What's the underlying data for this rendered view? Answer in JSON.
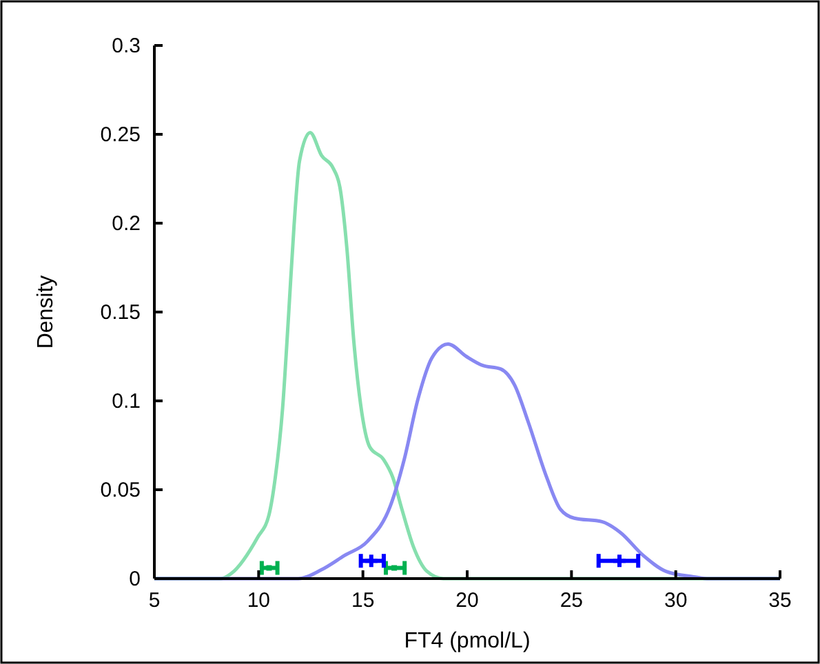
{
  "chart_data": {
    "type": "line",
    "xlabel": "FT4 (pmol/L)",
    "ylabel": "Density",
    "xlim": [
      5,
      35
    ],
    "ylim": [
      0,
      0.3
    ],
    "xticks": [
      5,
      10,
      15,
      20,
      25,
      30,
      35
    ],
    "yticks": [
      0,
      0.05,
      0.1,
      0.15,
      0.2,
      0.25,
      0.3
    ],
    "grid": false,
    "series": [
      {
        "color": "#86dfae",
        "x": [
          5,
          8.2,
          8.7,
          9.94,
          10.5,
          10.8,
          11.15,
          11.43,
          11.7,
          11.96,
          12.47,
          13.02,
          13.57,
          13.9,
          14.23,
          14.56,
          14.89,
          15.33,
          15.99,
          16.43,
          16.87,
          17.42,
          18.08,
          18.86,
          35
        ],
        "values": [
          0,
          0,
          0.003,
          0.023,
          0.036,
          0.057,
          0.096,
          0.147,
          0.199,
          0.235,
          0.251,
          0.238,
          0.231,
          0.22,
          0.186,
          0.134,
          0.098,
          0.074,
          0.067,
          0.057,
          0.039,
          0.018,
          0.004,
          0,
          0
        ]
      },
      {
        "color": "#8888f2",
        "x": [
          5,
          11.9,
          13.02,
          14.12,
          15.22,
          16.32,
          16.98,
          17.64,
          18.3,
          19.08,
          19.96,
          20.73,
          21.6,
          22.27,
          22.93,
          23.81,
          24.47,
          25.13,
          26.46,
          27.34,
          28.44,
          29.54,
          30.86,
          31.5,
          35
        ],
        "values": [
          0,
          0,
          0.005,
          0.013,
          0.021,
          0.041,
          0.067,
          0.101,
          0.124,
          0.132,
          0.125,
          0.12,
          0.118,
          0.109,
          0.088,
          0.057,
          0.039,
          0.034,
          0.032,
          0.026,
          0.013,
          0.004,
          0.001,
          0,
          0
        ]
      },
      {
        "type": "scatter",
        "marker": "square",
        "color": "#00b050",
        "x": [
          10.5,
          16.5
        ],
        "values": [
          0.006,
          0.006
        ],
        "xerrors": [
          [
            10.15,
            10.9
          ],
          [
            16.1,
            17.0
          ]
        ]
      },
      {
        "type": "scatter",
        "marker": "cross",
        "color": "#0000ff",
        "x": [
          15.4,
          27.3
        ],
        "values": [
          0.01,
          0.01
        ],
        "xerrors": [
          [
            14.9,
            16.0
          ],
          [
            26.3,
            28.2
          ]
        ]
      }
    ]
  }
}
